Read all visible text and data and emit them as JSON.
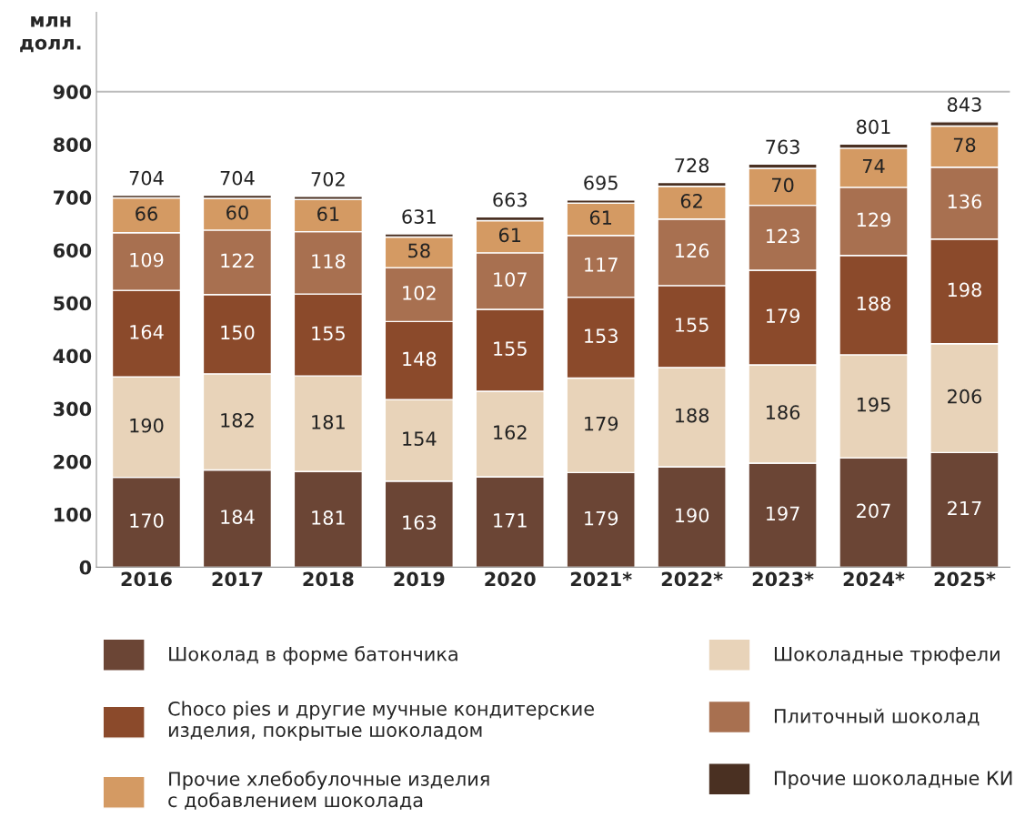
{
  "chart_data": {
    "type": "bar",
    "stacked": true,
    "ylabel": "млн\nдолл.",
    "categories": [
      "2016",
      "2017",
      "2018",
      "2019",
      "2020",
      "2021*",
      "2022*",
      "2023*",
      "2024*",
      "2025*"
    ],
    "series": [
      {
        "name": "Шоколад в форме батончика",
        "color": "#6b4535",
        "values": [
          170,
          184,
          181,
          163,
          171,
          179,
          190,
          197,
          207,
          217
        ],
        "value_labels": [
          "170",
          "184",
          "181",
          "163",
          "171",
          "179",
          "190",
          "197",
          "207",
          "217"
        ]
      },
      {
        "name": "Шоколадные трюфели",
        "color": "#e8d3b9",
        "values": [
          190,
          182,
          181,
          154,
          162,
          179,
          188,
          186,
          195,
          206
        ],
        "value_labels": [
          "190",
          "182",
          "181",
          "154",
          "162",
          "179",
          "188",
          "186",
          "195",
          "206"
        ]
      },
      {
        "name": "Choco pies и другие мучные кондитерские\nизделия, покрытые шоколадом",
        "color": "#8b4a2b",
        "values": [
          164,
          150,
          155,
          148,
          155,
          153,
          155,
          179,
          188,
          198
        ],
        "value_labels": [
          "164",
          "150",
          "155",
          "148",
          "155",
          "153",
          "155",
          "179",
          "188",
          "198"
        ]
      },
      {
        "name": "Плиточный шоколад",
        "color": "#a87050",
        "values": [
          109,
          122,
          118,
          102,
          107,
          117,
          126,
          123,
          129,
          136
        ],
        "value_labels": [
          "109",
          "122",
          "118",
          "102",
          "107",
          "117",
          "126",
          "123",
          "129",
          "136"
        ]
      },
      {
        "name": "Прочие хлебобулочные изделия\nс добавлением шоколада",
        "color": "#d49a63",
        "values": [
          66,
          60,
          61,
          58,
          61,
          61,
          62,
          70,
          74,
          78
        ],
        "value_labels": [
          "66",
          "60",
          "61",
          "58",
          "61",
          "61",
          "62",
          "70",
          "74",
          "78"
        ]
      },
      {
        "name": "Прочие шоколадные КИ",
        "color": "#4a3022",
        "values": [
          5,
          6,
          6,
          6,
          7,
          6,
          7,
          8,
          8,
          8
        ]
      }
    ],
    "totals": [
      "704",
      "704",
      "702",
      "631",
      "663",
      "695",
      "728",
      "763",
      "801",
      "843"
    ],
    "ylim": [
      0,
      1050
    ],
    "yticks": [
      0,
      100,
      200,
      300,
      400,
      500,
      600,
      700,
      800,
      900
    ],
    "ref_lines": [
      {
        "axis": "y",
        "value": 900,
        "color": "#bbbbbb"
      }
    ],
    "grid": false,
    "legend": "bottom"
  }
}
